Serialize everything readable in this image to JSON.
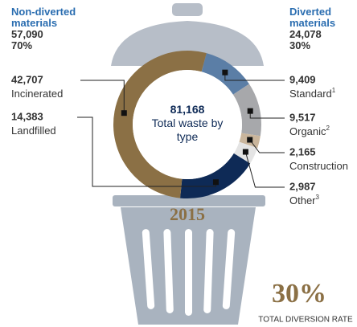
{
  "chart_data": {
    "type": "donut",
    "groups": [
      {
        "title": "Non-diverted materials",
        "value": 57090,
        "value_label": "57,090",
        "percent": 70,
        "percent_label": "70%"
      },
      {
        "title": "Diverted materials",
        "value": 24078,
        "value_label": "24,078",
        "percent": 30,
        "percent_label": "30%"
      }
    ],
    "total": {
      "value": 81168,
      "label": "81,168"
    },
    "center_text": "Total waste by type",
    "categories": [
      "Standard",
      "Organic",
      "Construction",
      "Other",
      "Landfilled",
      "Incinerated"
    ],
    "values": [
      9409,
      9517,
      2165,
      2987,
      14383,
      42707
    ],
    "value_labels": [
      "9,409",
      "9,517",
      "2,165",
      "2,987",
      "14,383",
      "42,707"
    ],
    "footnotes": [
      "1",
      "2",
      null,
      "3",
      null,
      null
    ],
    "colors": [
      "#5b7ea6",
      "#a7a8ab",
      "#c9b59c",
      "#e4e4e4",
      "#0e2a56",
      "#8b7045"
    ],
    "year": "2015",
    "diversion_rate": {
      "value": 30,
      "label": "30%"
    },
    "diversion_caption": "TOTAL DIVERSION RATE"
  }
}
